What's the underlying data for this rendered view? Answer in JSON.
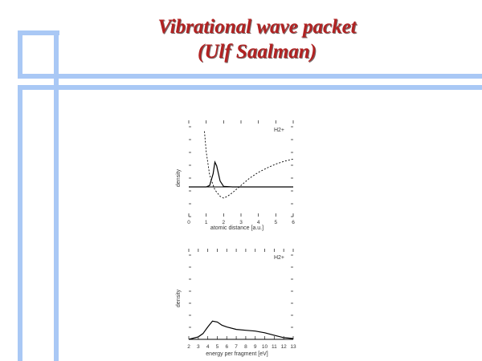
{
  "slide": {
    "title_line1": "Vibrational wave packet",
    "title_line2": "(Ulf Saalman)",
    "accent_color": "#a9c8f5",
    "title_color": "#b22222"
  },
  "chart_data": [
    {
      "type": "line",
      "title": "",
      "label": "H2+",
      "xlabel": "atomic distance [a.u.]",
      "ylabel": "density",
      "xlim": [
        0,
        6
      ],
      "xticks": [
        "0",
        "1",
        "2",
        "3",
        "4",
        "5",
        "6"
      ],
      "series": [
        {
          "style": "solid",
          "x": [
            0,
            1.0,
            1.2,
            1.4,
            1.5,
            1.6,
            1.8,
            2.0,
            2.5,
            3,
            4,
            5,
            6
          ],
          "y": [
            0,
            0,
            0.05,
            0.45,
            0.85,
            0.72,
            0.2,
            0.02,
            0,
            0,
            0,
            0,
            0
          ]
        },
        {
          "style": "dashed",
          "x": [
            0.9,
            1.0,
            1.2,
            1.5,
            1.8,
            2.0,
            2.2,
            2.5,
            3,
            3.5,
            4,
            4.5,
            5,
            5.5,
            6
          ],
          "y": [
            1.9,
            1.2,
            0.4,
            -0.1,
            -0.32,
            -0.38,
            -0.33,
            -0.2,
            0.05,
            0.3,
            0.5,
            0.65,
            0.78,
            0.88,
            0.95
          ]
        }
      ]
    },
    {
      "type": "line",
      "title": "",
      "label": "H2+",
      "xlabel": "energy per fragment [eV]",
      "ylabel": "density",
      "xlim": [
        2,
        13
      ],
      "xticks": [
        "2",
        "3",
        "4",
        "5",
        "6",
        "7",
        "8",
        "9",
        "10",
        "11",
        "12",
        "13"
      ],
      "series": [
        {
          "style": "solid",
          "x": [
            2,
            3,
            3.5,
            4,
            4.5,
            5,
            5.5,
            6,
            7,
            8,
            9,
            10,
            11,
            12,
            13
          ],
          "y": [
            0.0,
            0.03,
            0.07,
            0.15,
            0.22,
            0.21,
            0.17,
            0.15,
            0.12,
            0.11,
            0.1,
            0.08,
            0.05,
            0.02,
            0.01
          ]
        }
      ]
    }
  ]
}
